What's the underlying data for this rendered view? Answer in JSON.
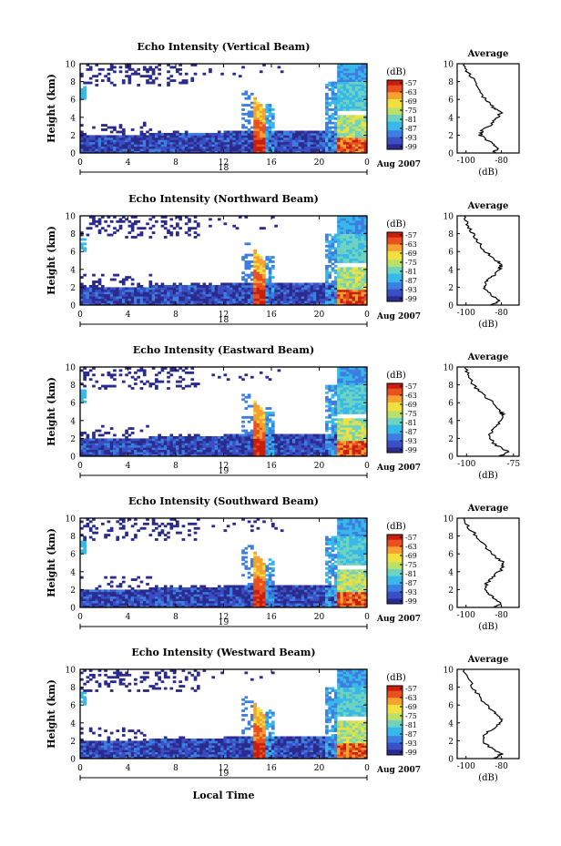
{
  "colors": {
    "scale": [
      "#2b2b8e",
      "#3a4fc4",
      "#3d7fe0",
      "#38b8e8",
      "#6ed3c0",
      "#b8e06a",
      "#f0e040",
      "#f5a030",
      "#e85020",
      "#c81e10"
    ],
    "axis": "#000000"
  },
  "common": {
    "xlabel": "Local Time",
    "ylabel": "Height (km)",
    "date_label": "Aug 2007",
    "cbar_unit": "(dB)",
    "avg_title": "Average",
    "avg_xlabel": "(dB)"
  },
  "chart_data": [
    {
      "type": "heatmap",
      "title": "Echo Intensity (Vertical Beam)",
      "day_label": "18",
      "x_ticks": [
        "0",
        "4",
        "8",
        "12",
        "16",
        "20",
        "0"
      ],
      "y_ticks": [
        "0",
        "2",
        "4",
        "6",
        "8",
        "10"
      ],
      "ylim": [
        0,
        10
      ],
      "xlim": [
        0,
        24
      ],
      "colorbar_ticks": [
        "-57",
        "-63",
        "-69",
        "-75",
        "-81",
        "-87",
        "-93",
        "-99"
      ],
      "avg": {
        "x_ticks": [
          "-100",
          "-80"
        ],
        "xlim": [
          -105,
          -70
        ],
        "profile": [
          [
            -85,
            0
          ],
          [
            -82,
            0.5
          ],
          [
            -86,
            1.2
          ],
          [
            -92,
            2
          ],
          [
            -91,
            2.5
          ],
          [
            -86,
            3.2
          ],
          [
            -82,
            4
          ],
          [
            -80,
            4.6
          ],
          [
            -84,
            5
          ],
          [
            -88,
            5.8
          ],
          [
            -92,
            6.8
          ],
          [
            -95,
            8
          ],
          [
            -99,
            9
          ],
          [
            -101,
            10
          ]
        ]
      }
    },
    {
      "type": "heatmap",
      "title": "Echo Intensity (Northward Beam)",
      "day_label": "18",
      "x_ticks": [
        "0",
        "4",
        "8",
        "12",
        "16",
        "20",
        "0"
      ],
      "y_ticks": [
        "0",
        "2",
        "4",
        "6",
        "8",
        "10"
      ],
      "ylim": [
        0,
        10
      ],
      "xlim": [
        0,
        24
      ],
      "colorbar_ticks": [
        "-57",
        "-63",
        "-69",
        "-75",
        "-81",
        "-87",
        "-93",
        "-99"
      ],
      "avg": {
        "x_ticks": [
          "-100",
          "-80"
        ],
        "xlim": [
          -105,
          -70
        ],
        "profile": [
          [
            -85,
            0
          ],
          [
            -82,
            0.5
          ],
          [
            -86,
            1.2
          ],
          [
            -90,
            2
          ],
          [
            -89,
            2.6
          ],
          [
            -85,
            3.2
          ],
          [
            -81,
            4
          ],
          [
            -80,
            4.5
          ],
          [
            -84,
            5.2
          ],
          [
            -89,
            6
          ],
          [
            -93,
            7
          ],
          [
            -96,
            8
          ],
          [
            -99,
            9
          ],
          [
            -101,
            10
          ]
        ]
      }
    },
    {
      "type": "heatmap",
      "title": "Echo Intensity (Eastward Beam)",
      "day_label": "19",
      "x_ticks": [
        "0",
        "4",
        "8",
        "12",
        "16",
        "20",
        "0"
      ],
      "y_ticks": [
        "0",
        "2",
        "4",
        "6",
        "8",
        "10"
      ],
      "ylim": [
        0,
        10
      ],
      "xlim": [
        0,
        24
      ],
      "colorbar_ticks": [
        "-57",
        "-63",
        "-69",
        "-75",
        "-81",
        "-87",
        "-93",
        "-99"
      ],
      "avg": {
        "x_ticks": [
          "-100",
          "-75"
        ],
        "xlim": [
          -105,
          -72
        ],
        "profile": [
          [
            -82,
            0
          ],
          [
            -78,
            0.5
          ],
          [
            -84,
            1.2
          ],
          [
            -88,
            2
          ],
          [
            -87,
            2.8
          ],
          [
            -84,
            3.5
          ],
          [
            -80,
            4.4
          ],
          [
            -82,
            5
          ],
          [
            -86,
            6
          ],
          [
            -92,
            7
          ],
          [
            -96,
            8
          ],
          [
            -99,
            9
          ],
          [
            -101,
            10
          ]
        ]
      }
    },
    {
      "type": "heatmap",
      "title": "Echo Intensity (Southward Beam)",
      "day_label": "19",
      "x_ticks": [
        "0",
        "4",
        "8",
        "12",
        "16",
        "20",
        "0"
      ],
      "y_ticks": [
        "0",
        "2",
        "4",
        "6",
        "8",
        "10"
      ],
      "ylim": [
        0,
        10
      ],
      "xlim": [
        0,
        24
      ],
      "colorbar_ticks": [
        "-57",
        "-63",
        "-69",
        "-75",
        "-81",
        "-87",
        "-93",
        "-99"
      ],
      "avg": {
        "x_ticks": [
          "-100",
          "-80"
        ],
        "xlim": [
          -105,
          -70
        ],
        "profile": [
          [
            -84,
            0
          ],
          [
            -80,
            0.5
          ],
          [
            -85,
            1.2
          ],
          [
            -90,
            2
          ],
          [
            -88,
            2.8
          ],
          [
            -84,
            3.5
          ],
          [
            -80,
            4.3
          ],
          [
            -79,
            5
          ],
          [
            -84,
            5.8
          ],
          [
            -89,
            6.8
          ],
          [
            -94,
            8
          ],
          [
            -99,
            9
          ],
          [
            -101,
            10
          ]
        ]
      }
    },
    {
      "type": "heatmap",
      "title": "Echo Intensity (Westward Beam)",
      "day_label": "19",
      "x_ticks": [
        "0",
        "4",
        "8",
        "12",
        "16",
        "20",
        "0"
      ],
      "y_ticks": [
        "0",
        "2",
        "4",
        "6",
        "8",
        "10"
      ],
      "ylim": [
        0,
        10
      ],
      "xlim": [
        0,
        24
      ],
      "colorbar_ticks": [
        "-57",
        "-63",
        "-69",
        "-75",
        "-81",
        "-87",
        "-93",
        "-99"
      ],
      "avg": {
        "x_ticks": [
          "-100",
          "-80"
        ],
        "xlim": [
          -105,
          -70
        ],
        "profile": [
          [
            -84,
            0
          ],
          [
            -80,
            0.5
          ],
          [
            -86,
            1.2
          ],
          [
            -91,
            2
          ],
          [
            -90,
            2.7
          ],
          [
            -85,
            3.3
          ],
          [
            -81,
            4
          ],
          [
            -80,
            4.6
          ],
          [
            -85,
            5.3
          ],
          [
            -90,
            6.3
          ],
          [
            -94,
            7.4
          ],
          [
            -98,
            8.6
          ],
          [
            -101,
            10
          ]
        ]
      }
    }
  ]
}
